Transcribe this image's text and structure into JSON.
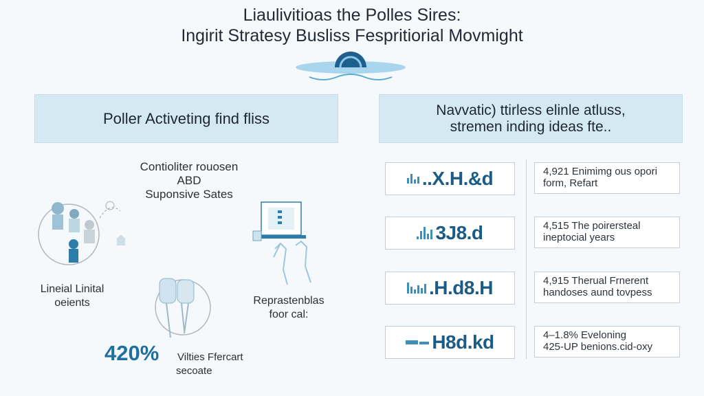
{
  "header": {
    "title_line1": "Liaulivitioas the Polles Sires:",
    "title_line2": "Ingirit Stratesy Busliss Fespritiorial Movmight"
  },
  "left_panel": {
    "heading": "Poller Activeting find fliss",
    "caption_top": [
      "Contioliter rouosen",
      "ABD",
      "Suponsive Sates"
    ],
    "caption_left": [
      "Lineial Linital",
      "oeients"
    ],
    "caption_right": [
      "Reprastenblas",
      "foor cal:"
    ],
    "stat_value": "420%",
    "stat_label": [
      "Vilties Ffercart",
      "secoate"
    ]
  },
  "right_panel": {
    "heading_line1": "Navvatic) ttirless elinle atluss,",
    "heading_line2": "stremen inding ideas fte..",
    "metrics": [
      {
        "value": "..X.H.&d",
        "note": [
          "4,921  Enimimg ous opori",
          "form, Refart"
        ]
      },
      {
        "value": "3J8.d",
        "note": [
          "4,515  The poirersteal",
          "ineptocial years"
        ]
      },
      {
        "value": ".H.d8.H",
        "note": [
          "4,915  Therual Frnerent",
          "handoses aund tovpess"
        ]
      },
      {
        "value": "H8d.kd",
        "note": [
          "4–1.8%  Eveloning",
          "425-UP benions.cid-oxy"
        ]
      }
    ]
  },
  "colors": {
    "accent": "#1f6f9f",
    "panel": "#d4e9f1",
    "icon": "#3b8fb8"
  }
}
